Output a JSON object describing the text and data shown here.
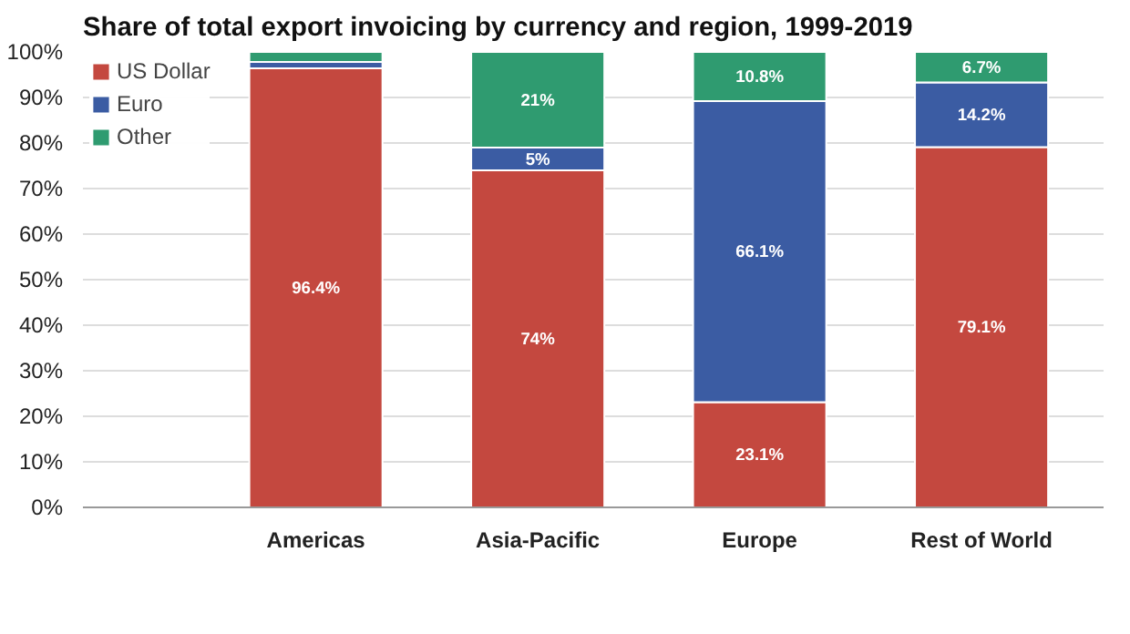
{
  "chart_data": {
    "type": "bar",
    "title": "Share of total export invoicing by currency and region, 1999-2019",
    "stacked": true,
    "categories": [
      "Americas",
      "Asia-Pacific",
      "Europe",
      "Rest of World"
    ],
    "series": [
      {
        "name": "US Dollar",
        "color": "#c4483f",
        "values": [
          96.4,
          74,
          23.1,
          79.1
        ],
        "value_labels": [
          "96.4%",
          "74%",
          "23.1%",
          "79.1%"
        ]
      },
      {
        "name": "Euro",
        "color": "#3b5ca3",
        "values": [
          1.4,
          5,
          66.1,
          14.2
        ],
        "value_labels": [
          null,
          "5%",
          "66.1%",
          "14.2%"
        ]
      },
      {
        "name": "Other",
        "color": "#2f9b70",
        "values": [
          2.2,
          21,
          10.8,
          6.7
        ],
        "value_labels": [
          null,
          "21%",
          "10.8%",
          "6.7%"
        ]
      }
    ],
    "ylim": [
      0,
      100
    ],
    "yticks": [
      {
        "value": 0,
        "label": "0%"
      },
      {
        "value": 10,
        "label": "10%"
      },
      {
        "value": 20,
        "label": "20%"
      },
      {
        "value": 30,
        "label": "30%"
      },
      {
        "value": 40,
        "label": "40%"
      },
      {
        "value": 50,
        "label": "50%"
      },
      {
        "value": 60,
        "label": "60%"
      },
      {
        "value": 70,
        "label": "70%"
      },
      {
        "value": 80,
        "label": "80%"
      },
      {
        "value": 90,
        "label": "90%"
      },
      {
        "value": 100,
        "label": "100%"
      }
    ],
    "grid": "y",
    "legend": "top left"
  }
}
